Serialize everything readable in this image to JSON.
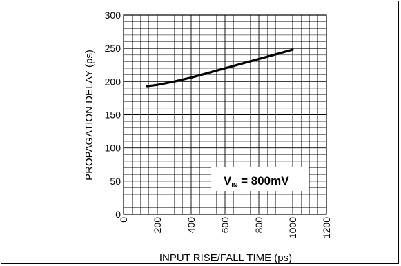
{
  "chart_data": {
    "type": "line",
    "xlabel": "INPUT RISE/FALL TIME (ps)",
    "ylabel": "PROPAGATION DELAY (ps)",
    "xlim": [
      0,
      1200
    ],
    "ylim": [
      0,
      300
    ],
    "x_ticks": [
      "0",
      "200",
      "400",
      "600",
      "800",
      "1000",
      "1200"
    ],
    "y_ticks": [
      "0",
      "50",
      "100",
      "150",
      "200",
      "250",
      "300"
    ],
    "x_minor_step": 50,
    "y_minor_step": 10,
    "grid": true,
    "series": [
      {
        "x": [
          140,
          200,
          300,
          400,
          500,
          600,
          700,
          800,
          900,
          1000
        ],
        "y": [
          193,
          195,
          200,
          206,
          213,
          220,
          227,
          234,
          241,
          248
        ]
      }
    ],
    "annotation": {
      "main": "V",
      "subscript": "IN",
      "value": " = 800mV"
    },
    "line_color": "#000000",
    "grid_color": "#000000"
  }
}
